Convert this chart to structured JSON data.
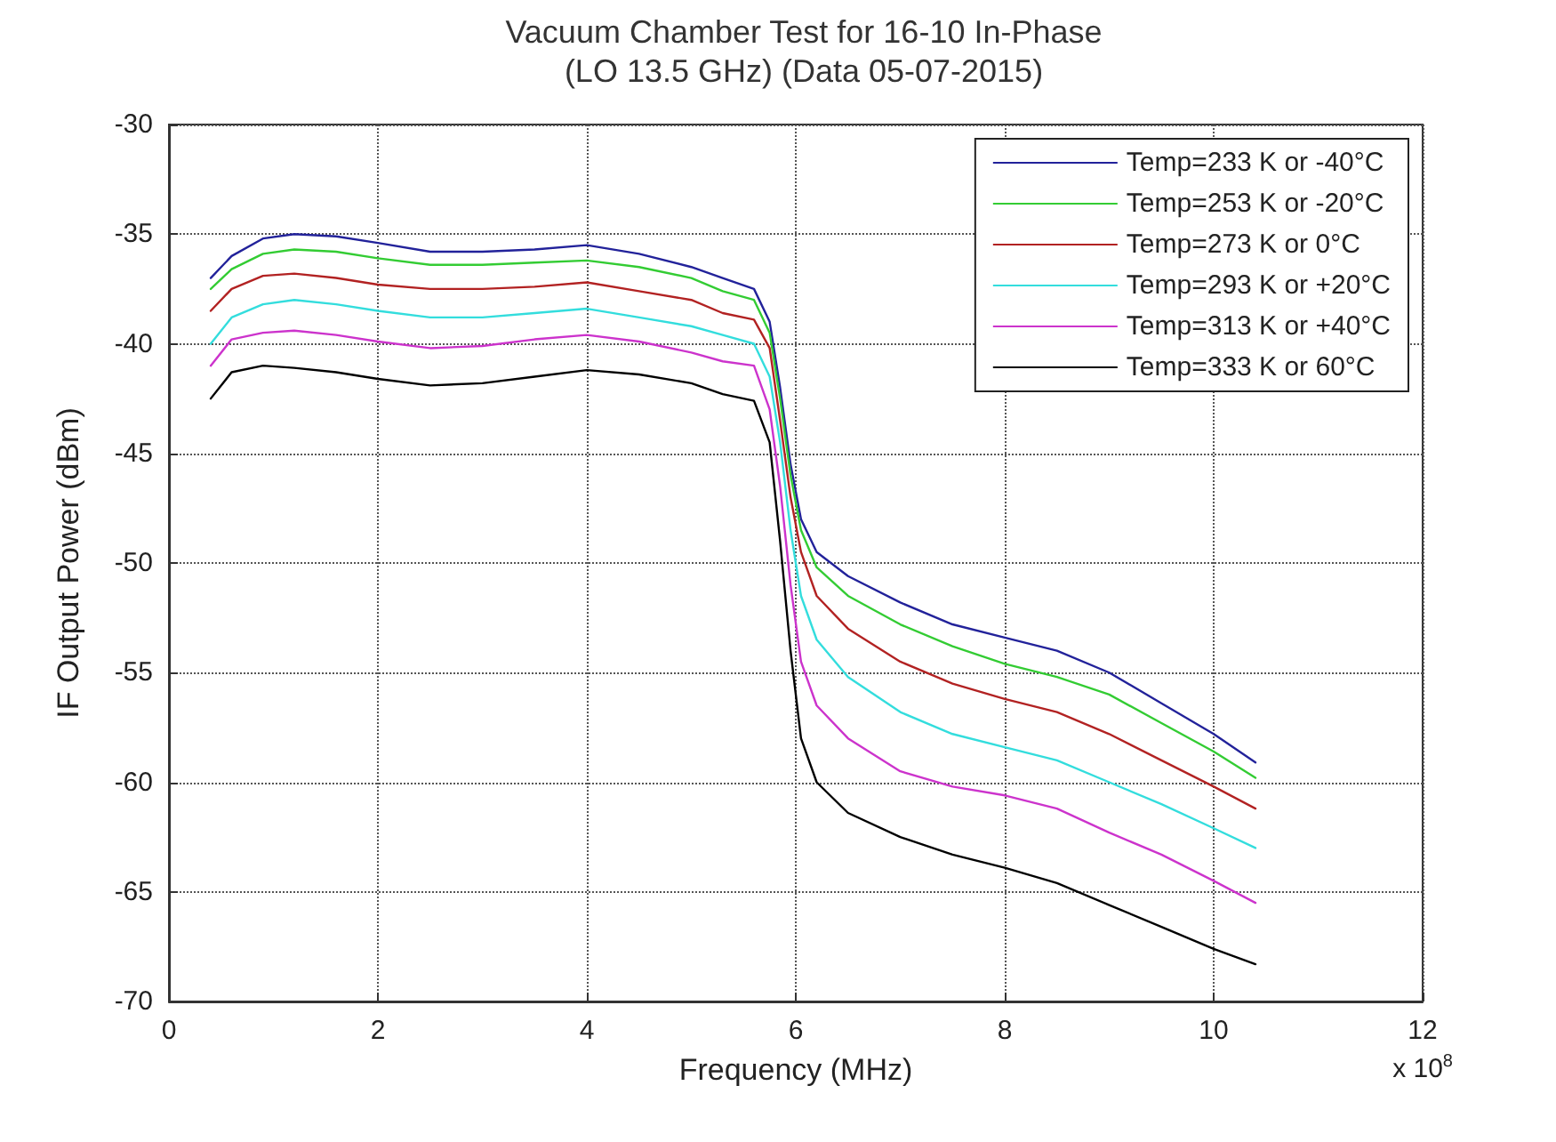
{
  "chart_data": {
    "type": "line",
    "title": "Vacuum Chamber Test for 16-10 In-Phase",
    "subtitle": "(LO 13.5 GHz) (Data 05-07-2015)",
    "xlabel": "Frequency (MHz)",
    "ylabel": "IF Output Power (dBm)",
    "annotations": [
      "x 10$^{8}$"
    ],
    "x": [
      0.4,
      0.6,
      0.9,
      1.2,
      1.6,
      2,
      2.5,
      3,
      3.5,
      4,
      4.5,
      5,
      5.3,
      5.6,
      5.75,
      5.85,
      5.95,
      6.05,
      6.2,
      6.5,
      7,
      7.5,
      8,
      8.5,
      9,
      9.5,
      10,
      10.4
    ],
    "series": [
      {
        "name": "Temp=233 K or -40°C",
        "color": "#22229a",
        "values": [
          -37,
          -36,
          -35.2,
          -35,
          -35.1,
          -35.4,
          -35.8,
          -35.8,
          -35.7,
          -35.5,
          -35.9,
          -36.5,
          -37,
          -37.5,
          -39,
          -42,
          -45.5,
          -48,
          -49.5,
          -50.6,
          -51.8,
          -52.8,
          -53.4,
          -54,
          -55,
          -56.4,
          -57.8,
          -59.1
        ]
      },
      {
        "name": "Temp=253 K or -20°C",
        "color": "#33cc33",
        "values": [
          -37.5,
          -36.6,
          -35.9,
          -35.7,
          -35.8,
          -36.1,
          -36.4,
          -36.4,
          -36.3,
          -36.2,
          -36.5,
          -37,
          -37.6,
          -38,
          -39.5,
          -42.5,
          -46,
          -48.5,
          -50.2,
          -51.5,
          -52.8,
          -53.8,
          -54.6,
          -55.2,
          -56,
          -57.3,
          -58.6,
          -59.8
        ]
      },
      {
        "name": "Temp=273 K or 0°C",
        "color": "#b22222",
        "values": [
          -38.5,
          -37.5,
          -36.9,
          -36.8,
          -37,
          -37.3,
          -37.5,
          -37.5,
          -37.4,
          -37.2,
          -37.6,
          -38,
          -38.6,
          -38.9,
          -40.2,
          -43.5,
          -47,
          -49.5,
          -51.5,
          -53,
          -54.5,
          -55.5,
          -56.2,
          -56.8,
          -57.8,
          -59,
          -60.2,
          -61.2
        ]
      },
      {
        "name": "Temp=293 K or +20°C",
        "color": "#33dddd",
        "values": [
          -40,
          -38.8,
          -38.2,
          -38,
          -38.2,
          -38.5,
          -38.8,
          -38.8,
          -38.6,
          -38.4,
          -38.8,
          -39.2,
          -39.6,
          -40,
          -41.5,
          -44.5,
          -48.5,
          -51.5,
          -53.5,
          -55.2,
          -56.8,
          -57.8,
          -58.4,
          -59,
          -60,
          -61,
          -62.1,
          -63
        ]
      },
      {
        "name": "Temp=313 K or +40°C",
        "color": "#cc33cc",
        "values": [
          -41,
          -39.8,
          -39.5,
          -39.4,
          -39.6,
          -39.9,
          -40.2,
          -40.1,
          -39.8,
          -39.6,
          -39.9,
          -40.4,
          -40.8,
          -41,
          -43,
          -46.5,
          -51,
          -54.5,
          -56.5,
          -58,
          -59.5,
          -60.2,
          -60.6,
          -61.2,
          -62.3,
          -63.3,
          -64.5,
          -65.5
        ]
      },
      {
        "name": "Temp=333 K or 60°C",
        "color": "#000000",
        "values": [
          -42.5,
          -41.3,
          -41,
          -41.1,
          -41.3,
          -41.6,
          -41.9,
          -41.8,
          -41.5,
          -41.2,
          -41.4,
          -41.8,
          -42.3,
          -42.6,
          -44.5,
          -49,
          -54,
          -58,
          -60,
          -61.4,
          -62.5,
          -63.3,
          -63.9,
          -64.6,
          -65.6,
          -66.6,
          -67.6,
          -68.3
        ]
      }
    ],
    "xlim": [
      0,
      12
    ],
    "xticks": [
      0,
      2,
      4,
      6,
      8,
      10,
      12
    ],
    "ylim": [
      -70,
      -30
    ],
    "yticks": [
      -70,
      -65,
      -60,
      -55,
      -50,
      -45,
      -40,
      -35,
      -30
    ],
    "grid": true,
    "legend": "top right",
    "marker": "none",
    "line_style": "solid"
  }
}
